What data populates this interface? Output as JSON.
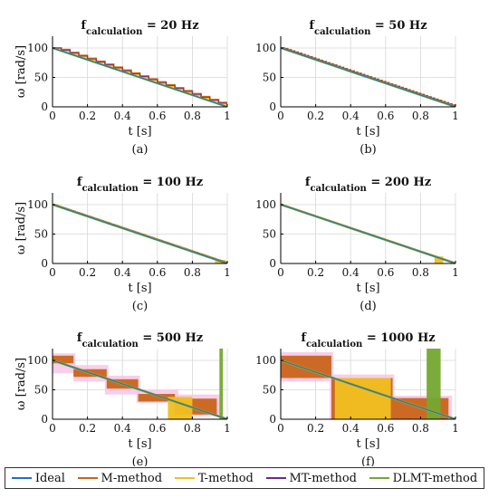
{
  "colors": {
    "Ideal": "#1f6fd0",
    "M-method": "#c9641a",
    "T-method": "#f0c020",
    "MT-method": "#6a2a8c",
    "DLMT-method": "#74a830",
    "Highlight": "#f7c6e6",
    "Grid": "#d7d7d7"
  },
  "legend": [
    "Ideal",
    "M-method",
    "T-method",
    "MT-method",
    "DLMT-method"
  ],
  "chart_data": [
    {
      "type": "line",
      "panel_label": "(a)",
      "title_base": "f",
      "title_sub": "calculation",
      "title_rest": " = 20 Hz",
      "xlabel": "t [s]",
      "ylabel": "ω [rad/s]",
      "xlim": [
        0,
        1
      ],
      "ylim": [
        0,
        120
      ],
      "xticks": [
        "0",
        "0.2",
        "0.4",
        "0.6",
        "0.8",
        "1"
      ],
      "yticks": [
        "0",
        "50",
        "100"
      ],
      "grid": true,
      "ideal": {
        "x": [
          0,
          1
        ],
        "y": [
          100,
          0
        ]
      },
      "update_period": 0.05,
      "features": []
    },
    {
      "type": "line",
      "panel_label": "(b)",
      "title_base": "f",
      "title_sub": "calculation",
      "title_rest": " = 50 Hz",
      "xlabel": "t [s]",
      "ylabel": "",
      "xlim": [
        0,
        1
      ],
      "ylim": [
        0,
        120
      ],
      "xticks": [
        "0",
        "0.2",
        "0.4",
        "0.6",
        "0.8",
        "1"
      ],
      "yticks": [
        "0",
        "50",
        "100"
      ],
      "grid": true,
      "ideal": {
        "x": [
          0,
          1
        ],
        "y": [
          100,
          0
        ]
      },
      "update_period": 0.02,
      "features": []
    },
    {
      "type": "line",
      "panel_label": "(c)",
      "title_base": "f",
      "title_sub": "calculation",
      "title_rest": " = 100 Hz",
      "xlabel": "t [s]",
      "ylabel": "ω [rad/s]",
      "xlim": [
        0,
        1
      ],
      "ylim": [
        0,
        120
      ],
      "xticks": [
        "0",
        "0.2",
        "0.4",
        "0.6",
        "0.8",
        "1"
      ],
      "yticks": [
        "0",
        "50",
        "100"
      ],
      "grid": true,
      "ideal": {
        "x": [
          0,
          1
        ],
        "y": [
          100,
          0
        ]
      },
      "update_period": 0.01,
      "features": [
        {
          "kind": "band",
          "series": "T-method",
          "x0": 0.93,
          "x1": 0.99,
          "y0": 0,
          "y1": 6
        }
      ]
    },
    {
      "type": "line",
      "panel_label": "(d)",
      "title_base": "f",
      "title_sub": "calculation",
      "title_rest": " = 200 Hz",
      "xlabel": "t [s]",
      "ylabel": "",
      "xlim": [
        0,
        1
      ],
      "ylim": [
        0,
        120
      ],
      "xticks": [
        "0",
        "0.2",
        "0.4",
        "0.6",
        "0.8",
        "1"
      ],
      "yticks": [
        "0",
        "50",
        "100"
      ],
      "grid": true,
      "ideal": {
        "x": [
          0,
          1
        ],
        "y": [
          100,
          0
        ]
      },
      "update_period": 0.005,
      "features": [
        {
          "kind": "band",
          "series": "T-method",
          "x0": 0.88,
          "x1": 0.93,
          "y0": 0,
          "y1": 12
        }
      ]
    },
    {
      "type": "line",
      "panel_label": "(e)",
      "title_base": "f",
      "title_sub": "calculation",
      "title_rest": " = 500 Hz",
      "xlabel": "t [s]",
      "ylabel": "ω [rad/s]",
      "xlim": [
        0,
        1
      ],
      "ylim": [
        0,
        120
      ],
      "xticks": [
        "0",
        "0.2",
        "0.4",
        "0.6",
        "0.8",
        "1"
      ],
      "yticks": [
        "0",
        "50",
        "100"
      ],
      "grid": true,
      "ideal": {
        "x": [
          0,
          1
        ],
        "y": [
          100,
          0
        ]
      },
      "update_period": 0.002,
      "features": [
        {
          "kind": "band",
          "series": "Highlight",
          "x0": 0.0,
          "x1": 0.13,
          "y0": 78,
          "y1": 112
        },
        {
          "kind": "band",
          "series": "Highlight",
          "x0": 0.12,
          "x1": 0.32,
          "y0": 64,
          "y1": 92
        },
        {
          "kind": "band",
          "series": "Highlight",
          "x0": 0.3,
          "x1": 0.5,
          "y0": 42,
          "y1": 74
        },
        {
          "kind": "band",
          "series": "Highlight",
          "x0": 0.48,
          "x1": 0.72,
          "y0": 28,
          "y1": 50
        },
        {
          "kind": "band",
          "series": "Highlight",
          "x0": 0.68,
          "x1": 0.96,
          "y0": 5,
          "y1": 42
        },
        {
          "kind": "band",
          "series": "M-method",
          "x0": 0.0,
          "x1": 0.12,
          "y0": 95,
          "y1": 108
        },
        {
          "kind": "band",
          "series": "M-method",
          "x0": 0.12,
          "x1": 0.31,
          "y0": 72,
          "y1": 85
        },
        {
          "kind": "band",
          "series": "M-method",
          "x0": 0.31,
          "x1": 0.49,
          "y0": 52,
          "y1": 68
        },
        {
          "kind": "band",
          "series": "M-method",
          "x0": 0.49,
          "x1": 0.7,
          "y0": 30,
          "y1": 43
        },
        {
          "kind": "band",
          "series": "M-method",
          "x0": 0.7,
          "x1": 0.94,
          "y0": 8,
          "y1": 35
        },
        {
          "kind": "band",
          "series": "T-method",
          "x0": 0.66,
          "x1": 0.8,
          "y0": 0,
          "y1": 38
        },
        {
          "kind": "band",
          "series": "DLMT-method",
          "x0": 0.955,
          "x1": 0.975,
          "y0": 0,
          "y1": 120
        }
      ]
    },
    {
      "type": "line",
      "panel_label": "(f)",
      "title_base": "f",
      "title_sub": "calculation",
      "title_rest": " = 1000 Hz",
      "xlabel": "t [s]",
      "ylabel": "",
      "xlim": [
        0,
        1
      ],
      "ylim": [
        0,
        120
      ],
      "xticks": [
        "0",
        "0.2",
        "0.4",
        "0.6",
        "0.8",
        "1"
      ],
      "yticks": [
        "0",
        "50",
        "100"
      ],
      "grid": true,
      "ideal": {
        "x": [
          0,
          1
        ],
        "y": [
          100,
          0
        ]
      },
      "update_period": 0.001,
      "features": [
        {
          "kind": "band",
          "series": "Highlight",
          "x0": 0.0,
          "x1": 0.3,
          "y0": 64,
          "y1": 114
        },
        {
          "kind": "band",
          "series": "Highlight",
          "x0": 0.28,
          "x1": 0.65,
          "y0": 0,
          "y1": 76
        },
        {
          "kind": "band",
          "series": "Highlight",
          "x0": 0.6,
          "x1": 0.98,
          "y0": 0,
          "y1": 40
        },
        {
          "kind": "band",
          "series": "M-method",
          "x0": 0.0,
          "x1": 0.29,
          "y0": 70,
          "y1": 108
        },
        {
          "kind": "band",
          "series": "M-method",
          "x0": 0.29,
          "x1": 0.64,
          "y0": 0,
          "y1": 70
        },
        {
          "kind": "band",
          "series": "M-method",
          "x0": 0.64,
          "x1": 0.96,
          "y0": 0,
          "y1": 36
        },
        {
          "kind": "band",
          "series": "T-method",
          "x0": 0.31,
          "x1": 0.63,
          "y0": 0,
          "y1": 70
        },
        {
          "kind": "band",
          "series": "DLMT-method",
          "x0": 0.835,
          "x1": 0.915,
          "y0": 0,
          "y1": 120
        }
      ]
    }
  ]
}
